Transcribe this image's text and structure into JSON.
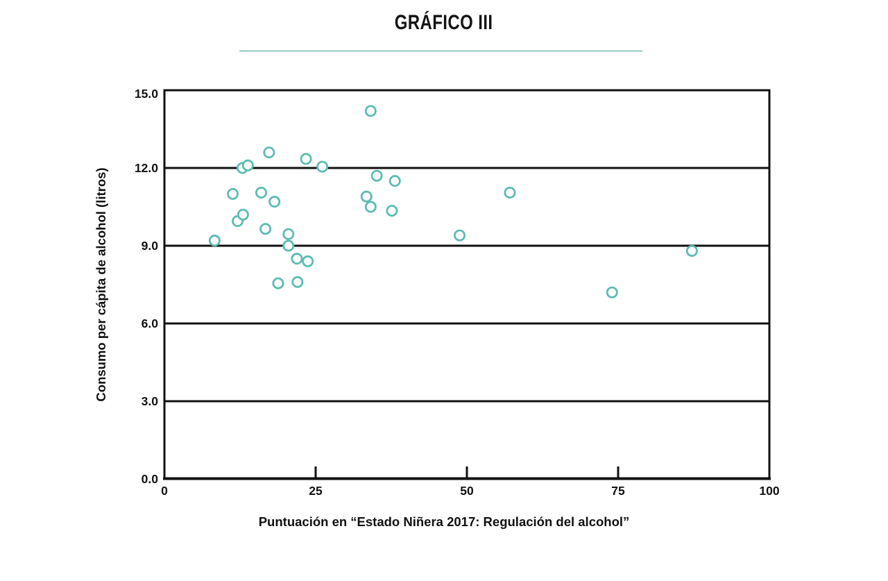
{
  "header": {
    "title": "GRÁFICO III"
  },
  "colors": {
    "accent_teal": "#5cbcb1",
    "underline_teal": "#b3d7d2",
    "axis_black": "#111111",
    "background": "#ffffff"
  },
  "chart_data": {
    "type": "scatter",
    "title": "GRÁFICO III",
    "xlabel": "Puntuación en “Estado Niñera 2017: Regulación del alcohol”",
    "ylabel": "Consumo per cápita de alcohol (litros)",
    "xlim": [
      0,
      100
    ],
    "ylim": [
      0,
      15
    ],
    "x_ticks": [
      0,
      25,
      50,
      75,
      100
    ],
    "x_tick_labels": [
      "0",
      "25",
      "50",
      "75",
      "100"
    ],
    "y_ticks": [
      0,
      3,
      6,
      9,
      12,
      15
    ],
    "y_tick_labels": [
      "0.0",
      "3.0",
      "6.0",
      "9.0",
      "12.0",
      "15.0"
    ],
    "grid": "horizontal-only",
    "legend": "none",
    "marker": {
      "shape": "open-circle",
      "stroke_color": "#5cbcb1",
      "fill": "#ffffff",
      "radius_px": 7.1,
      "stroke_px": 2.8
    },
    "points": [
      {
        "x": 8.3,
        "y": 9.2
      },
      {
        "x": 11.3,
        "y": 11.0
      },
      {
        "x": 12.1,
        "y": 9.95
      },
      {
        "x": 13.0,
        "y": 10.2
      },
      {
        "x": 12.9,
        "y": 12.0
      },
      {
        "x": 13.8,
        "y": 12.1
      },
      {
        "x": 16.0,
        "y": 11.05
      },
      {
        "x": 16.7,
        "y": 9.65
      },
      {
        "x": 17.3,
        "y": 12.6
      },
      {
        "x": 18.2,
        "y": 10.7
      },
      {
        "x": 18.8,
        "y": 7.55
      },
      {
        "x": 20.5,
        "y": 9.45
      },
      {
        "x": 20.5,
        "y": 9.0
      },
      {
        "x": 21.9,
        "y": 8.5
      },
      {
        "x": 22.0,
        "y": 7.6
      },
      {
        "x": 23.7,
        "y": 8.4
      },
      {
        "x": 23.4,
        "y": 12.35
      },
      {
        "x": 26.1,
        "y": 12.05
      },
      {
        "x": 34.1,
        "y": 14.2
      },
      {
        "x": 33.4,
        "y": 10.9
      },
      {
        "x": 34.1,
        "y": 10.5
      },
      {
        "x": 35.1,
        "y": 11.7
      },
      {
        "x": 37.6,
        "y": 10.35
      },
      {
        "x": 38.1,
        "y": 11.5
      },
      {
        "x": 48.8,
        "y": 9.4
      },
      {
        "x": 57.1,
        "y": 11.05
      },
      {
        "x": 74.0,
        "y": 7.2
      },
      {
        "x": 87.2,
        "y": 8.8
      }
    ]
  }
}
